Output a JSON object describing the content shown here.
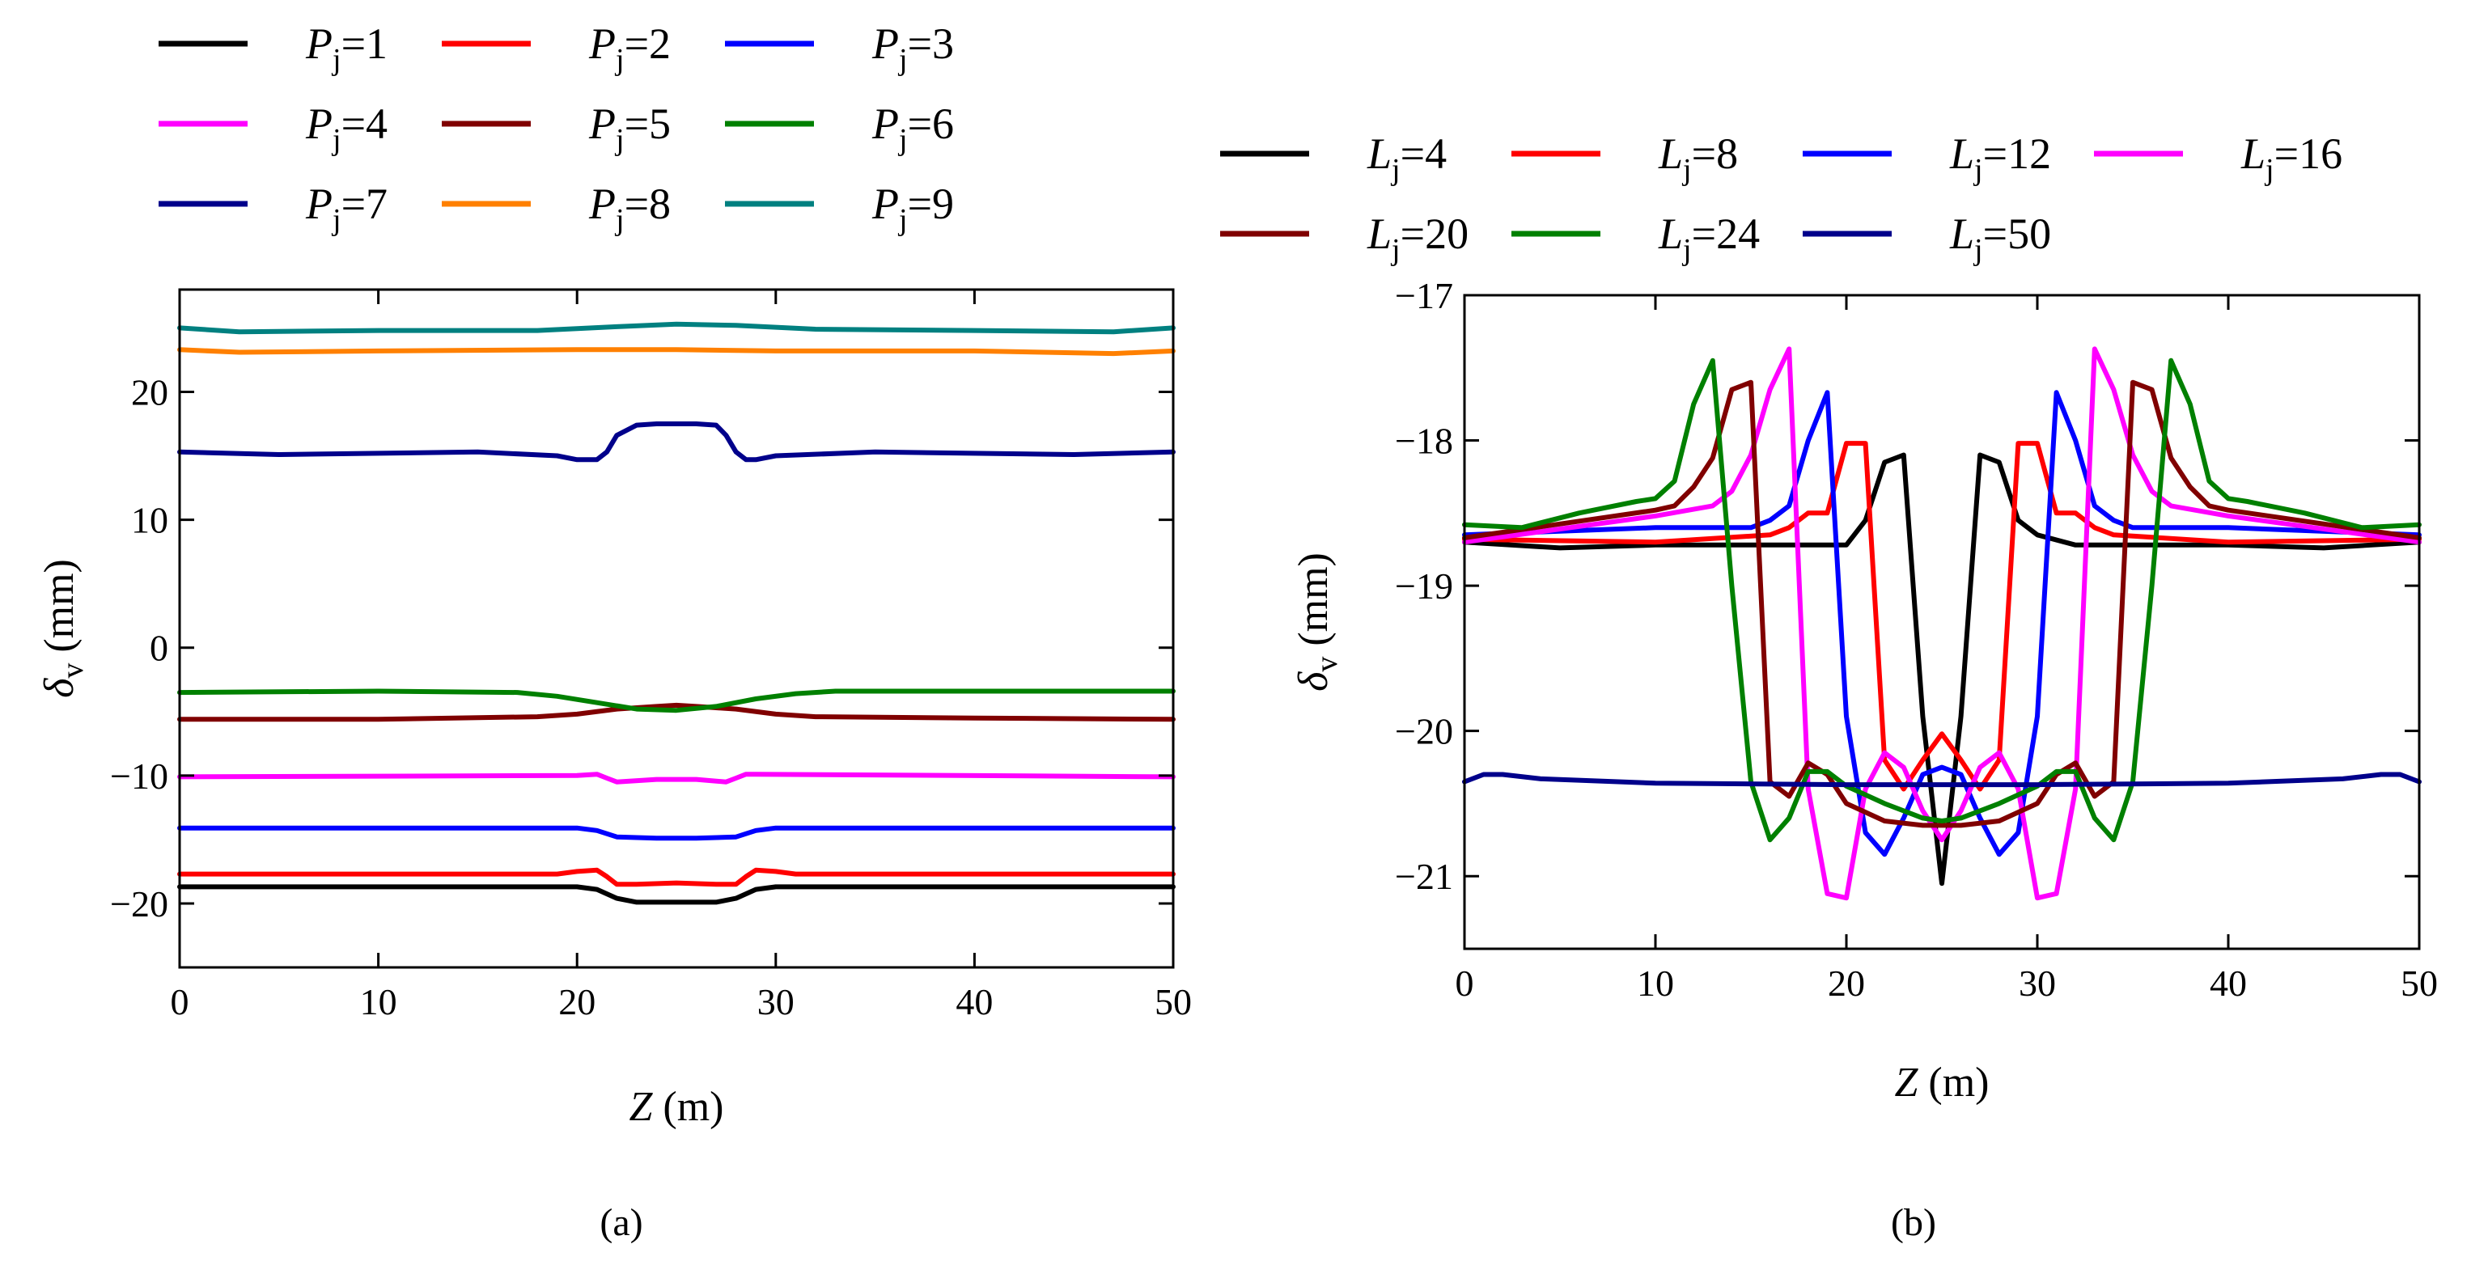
{
  "figure": {
    "caption_a": "(a)",
    "caption_b": "(b)"
  },
  "chart_data": [
    {
      "panel": "a",
      "type": "line",
      "title": "",
      "xlabel": "Z (m)",
      "ylabel": "δv (mm)",
      "xlim": [
        0,
        50
      ],
      "ylim": [
        -25,
        28
      ],
      "xticks": [
        0,
        10,
        20,
        30,
        40,
        50
      ],
      "yticks": [
        -20,
        -10,
        0,
        10,
        20
      ],
      "ytick_labels": [
        "−20",
        "−10",
        "0",
        "10",
        "20"
      ],
      "legend_position": "top, above plot, 3 columns",
      "series": [
        {
          "name": "Pj=1",
          "color": "#000000",
          "x": [
            0,
            20,
            21,
            22,
            23,
            25,
            27,
            28,
            29,
            30,
            50
          ],
          "y": [
            -18.7,
            -18.7,
            -18.9,
            -19.6,
            -19.9,
            -19.9,
            -19.9,
            -19.6,
            -18.9,
            -18.7,
            -18.7
          ]
        },
        {
          "name": "Pj=2",
          "color": "#ff0000",
          "x": [
            0,
            19,
            20,
            21,
            21.5,
            22,
            23,
            25,
            27,
            28,
            28.5,
            29,
            30,
            31,
            50
          ],
          "y": [
            -17.7,
            -17.7,
            -17.5,
            -17.4,
            -17.9,
            -18.5,
            -18.5,
            -18.4,
            -18.5,
            -18.5,
            -17.9,
            -17.4,
            -17.5,
            -17.7,
            -17.7
          ]
        },
        {
          "name": "Pj=3",
          "color": "#0000ff",
          "x": [
            0,
            20,
            21,
            22,
            24,
            26,
            28,
            29,
            30,
            50
          ],
          "y": [
            -14.1,
            -14.1,
            -14.3,
            -14.8,
            -14.9,
            -14.9,
            -14.8,
            -14.3,
            -14.1,
            -14.1
          ]
        },
        {
          "name": "Pj=4",
          "color": "#ff00ff",
          "x": [
            0,
            20,
            21,
            21.5,
            22,
            24,
            26,
            27.5,
            28,
            28.5,
            29,
            50
          ],
          "y": [
            -10.1,
            -10.0,
            -9.9,
            -10.2,
            -10.5,
            -10.3,
            -10.3,
            -10.5,
            -10.2,
            -9.9,
            -9.9,
            -10.1
          ]
        },
        {
          "name": "Pj=5",
          "color": "#800000",
          "x": [
            0,
            10,
            18,
            20,
            22,
            24,
            25,
            26,
            28,
            30,
            32,
            40,
            50
          ],
          "y": [
            -5.6,
            -5.6,
            -5.4,
            -5.2,
            -4.8,
            -4.6,
            -4.5,
            -4.6,
            -4.8,
            -5.2,
            -5.4,
            -5.5,
            -5.6
          ]
        },
        {
          "name": "Pj=6",
          "color": "#008000",
          "x": [
            0,
            10,
            17,
            19,
            21,
            23,
            25,
            27,
            29,
            31,
            33,
            40,
            50
          ],
          "y": [
            -3.5,
            -3.4,
            -3.5,
            -3.8,
            -4.3,
            -4.8,
            -4.9,
            -4.6,
            -4.0,
            -3.6,
            -3.4,
            -3.4,
            -3.4
          ]
        },
        {
          "name": "Pj=7",
          "color": "#00008b",
          "x": [
            0,
            5,
            15,
            19,
            20,
            21,
            21.5,
            22,
            23,
            24,
            25,
            26,
            27,
            27.5,
            28,
            28.5,
            29,
            30,
            35,
            45,
            50
          ],
          "y": [
            15.3,
            15.1,
            15.3,
            15.0,
            14.7,
            14.7,
            15.3,
            16.6,
            17.4,
            17.5,
            17.5,
            17.5,
            17.4,
            16.6,
            15.3,
            14.7,
            14.7,
            15.0,
            15.3,
            15.1,
            15.3
          ]
        },
        {
          "name": "Pj=8",
          "color": "#ff8000",
          "x": [
            0,
            3,
            10,
            20,
            25,
            30,
            40,
            47,
            50
          ],
          "y": [
            23.3,
            23.1,
            23.2,
            23.3,
            23.3,
            23.2,
            23.2,
            23.0,
            23.2
          ]
        },
        {
          "name": "Pj=9",
          "color": "#008080",
          "x": [
            0,
            3,
            10,
            18,
            22,
            25,
            28,
            32,
            40,
            47,
            50
          ],
          "y": [
            25.0,
            24.7,
            24.8,
            24.8,
            25.1,
            25.3,
            25.2,
            24.9,
            24.8,
            24.7,
            25.0
          ]
        }
      ]
    },
    {
      "panel": "b",
      "type": "line",
      "title": "",
      "xlabel": "Z (m)",
      "ylabel": "δv (mm)",
      "xlim": [
        0,
        50
      ],
      "ylim": [
        -21.5,
        -17
      ],
      "xticks": [
        0,
        10,
        20,
        30,
        40,
        50
      ],
      "yticks": [
        -21,
        -20,
        -19,
        -18,
        -17
      ],
      "ytick_labels": [
        "−21",
        "−20",
        "−19",
        "−18",
        "−17"
      ],
      "legend_position": "top, above plot, 4 columns",
      "series": [
        {
          "name": "Lj=4",
          "color": "#000000",
          "x": [
            0,
            5,
            10,
            15,
            18,
            20,
            21,
            22,
            23,
            24,
            25,
            26,
            27,
            28,
            29,
            30,
            32,
            35,
            40,
            45,
            50
          ],
          "y": [
            -18.7,
            -18.74,
            -18.72,
            -18.72,
            -18.72,
            -18.72,
            -18.55,
            -18.15,
            -18.1,
            -19.9,
            -21.05,
            -19.9,
            -18.1,
            -18.15,
            -18.55,
            -18.65,
            -18.72,
            -18.72,
            -18.72,
            -18.74,
            -18.7
          ]
        },
        {
          "name": "Lj=8",
          "color": "#ff0000",
          "x": [
            0,
            10,
            16,
            17,
            18,
            19,
            20,
            21,
            22,
            23,
            24,
            25,
            26,
            27,
            28,
            29,
            30,
            31,
            32,
            33,
            34,
            40,
            50
          ],
          "y": [
            -18.68,
            -18.7,
            -18.65,
            -18.6,
            -18.5,
            -18.5,
            -18.02,
            -18.02,
            -20.2,
            -20.4,
            -20.2,
            -20.02,
            -20.2,
            -20.4,
            -20.2,
            -18.02,
            -18.02,
            -18.5,
            -18.5,
            -18.6,
            -18.65,
            -18.7,
            -18.68
          ]
        },
        {
          "name": "Lj=12",
          "color": "#0000ff",
          "x": [
            0,
            10,
            15,
            16,
            17,
            18,
            19,
            20,
            21,
            22,
            23,
            24,
            25,
            26,
            27,
            28,
            29,
            30,
            31,
            32,
            33,
            34,
            35,
            40,
            50
          ],
          "y": [
            -18.65,
            -18.6,
            -18.6,
            -18.55,
            -18.45,
            -18.0,
            -17.67,
            -19.9,
            -20.7,
            -20.85,
            -20.6,
            -20.3,
            -20.25,
            -20.3,
            -20.6,
            -20.85,
            -20.7,
            -19.9,
            -17.67,
            -18.0,
            -18.45,
            -18.55,
            -18.6,
            -18.6,
            -18.65
          ]
        },
        {
          "name": "Lj=16",
          "color": "#ff00ff",
          "x": [
            0,
            10,
            13,
            14,
            15,
            16,
            17,
            18,
            19,
            20,
            21,
            22,
            23,
            24,
            25,
            26,
            27,
            28,
            29,
            30,
            31,
            32,
            33,
            34,
            35,
            36,
            37,
            40,
            50
          ],
          "y": [
            -18.7,
            -18.52,
            -18.45,
            -18.35,
            -18.1,
            -17.65,
            -17.37,
            -20.4,
            -21.12,
            -21.15,
            -20.4,
            -20.15,
            -20.25,
            -20.55,
            -20.75,
            -20.55,
            -20.25,
            -20.15,
            -20.4,
            -21.15,
            -21.12,
            -20.4,
            -17.37,
            -17.65,
            -18.1,
            -18.35,
            -18.45,
            -18.52,
            -18.7
          ]
        },
        {
          "name": "Lj=20",
          "color": "#800000",
          "x": [
            0,
            10,
            11,
            12,
            13,
            14,
            15,
            16,
            17,
            18,
            19,
            20,
            22,
            24,
            25,
            26,
            28,
            30,
            31,
            32,
            33,
            34,
            35,
            36,
            37,
            38,
            39,
            40,
            50
          ],
          "y": [
            -18.67,
            -18.48,
            -18.45,
            -18.32,
            -18.12,
            -17.65,
            -17.6,
            -20.35,
            -20.45,
            -20.22,
            -20.3,
            -20.5,
            -20.62,
            -20.65,
            -20.65,
            -20.65,
            -20.62,
            -20.5,
            -20.3,
            -20.22,
            -20.45,
            -20.35,
            -17.6,
            -17.65,
            -18.12,
            -18.32,
            -18.45,
            -18.48,
            -18.67
          ]
        },
        {
          "name": "Lj=24",
          "color": "#008000",
          "x": [
            0,
            3,
            6,
            9,
            10,
            11,
            12,
            13,
            14,
            15,
            16,
            17,
            18,
            19,
            20,
            22,
            24,
            25,
            26,
            28,
            30,
            31,
            32,
            33,
            34,
            35,
            36,
            37,
            38,
            39,
            40,
            41,
            44,
            47,
            50
          ],
          "y": [
            -18.58,
            -18.6,
            -18.5,
            -18.42,
            -18.4,
            -18.28,
            -17.75,
            -17.45,
            -19.0,
            -20.35,
            -20.75,
            -20.6,
            -20.28,
            -20.28,
            -20.38,
            -20.5,
            -20.6,
            -20.62,
            -20.6,
            -20.5,
            -20.38,
            -20.28,
            -20.28,
            -20.6,
            -20.75,
            -20.35,
            -19.0,
            -17.45,
            -17.75,
            -18.28,
            -18.4,
            -18.42,
            -18.5,
            -18.6,
            -18.58
          ]
        },
        {
          "name": "Lj=50",
          "color": "#00008b",
          "x": [
            0,
            1,
            2,
            4,
            10,
            20,
            25,
            30,
            40,
            46,
            48,
            49,
            50
          ],
          "y": [
            -20.35,
            -20.3,
            -20.3,
            -20.33,
            -20.36,
            -20.37,
            -20.37,
            -20.37,
            -20.36,
            -20.33,
            -20.3,
            -20.3,
            -20.35
          ]
        }
      ]
    }
  ]
}
